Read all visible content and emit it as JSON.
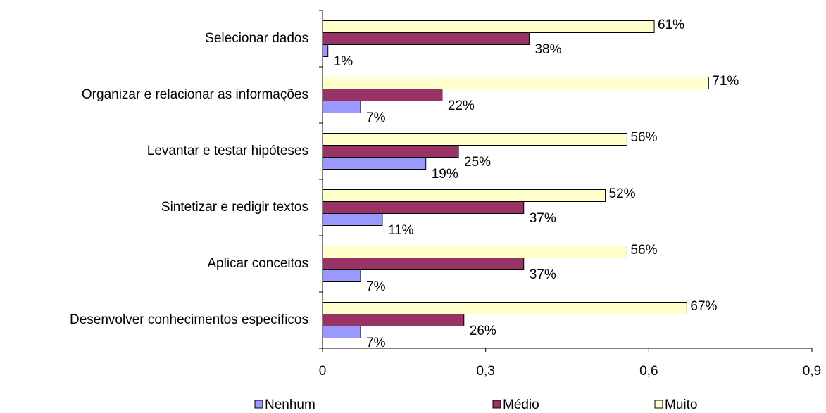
{
  "chart_data": {
    "type": "bar",
    "orientation": "horizontal",
    "categories": [
      "Selecionar dados",
      "Organizar e relacionar as informações",
      "Levantar e testar hipóteses",
      "Sintetizar e redigir textos",
      "Aplicar conceitos",
      "Desenvolver conhecimentos específicos"
    ],
    "series": [
      {
        "name": "Nenhum",
        "color": "#9999ff",
        "values": [
          0.01,
          0.07,
          0.19,
          0.11,
          0.07,
          0.07
        ],
        "value_labels": [
          "1%",
          "7%",
          "19%",
          "11%",
          "7%",
          "7%"
        ]
      },
      {
        "name": "Médio",
        "color": "#993366",
        "values": [
          0.38,
          0.22,
          0.25,
          0.37,
          0.37,
          0.26
        ],
        "value_labels": [
          "38%",
          "22%",
          "25%",
          "37%",
          "37%",
          "26%"
        ]
      },
      {
        "name": "Muito",
        "color": "#ffffcc",
        "values": [
          0.61,
          0.71,
          0.56,
          0.52,
          0.56,
          0.67
        ],
        "value_labels": [
          "61%",
          "71%",
          "56%",
          "52%",
          "56%",
          "67%"
        ]
      }
    ],
    "xlim": [
      0,
      0.9
    ],
    "xticks": [
      0,
      {
        "value": 0.3,
        "label": "0,3"
      },
      {
        "value": 0.6,
        "label": "0,6"
      },
      {
        "value": 0.9,
        "label": "0,9"
      }
    ],
    "legend": "bottom"
  }
}
